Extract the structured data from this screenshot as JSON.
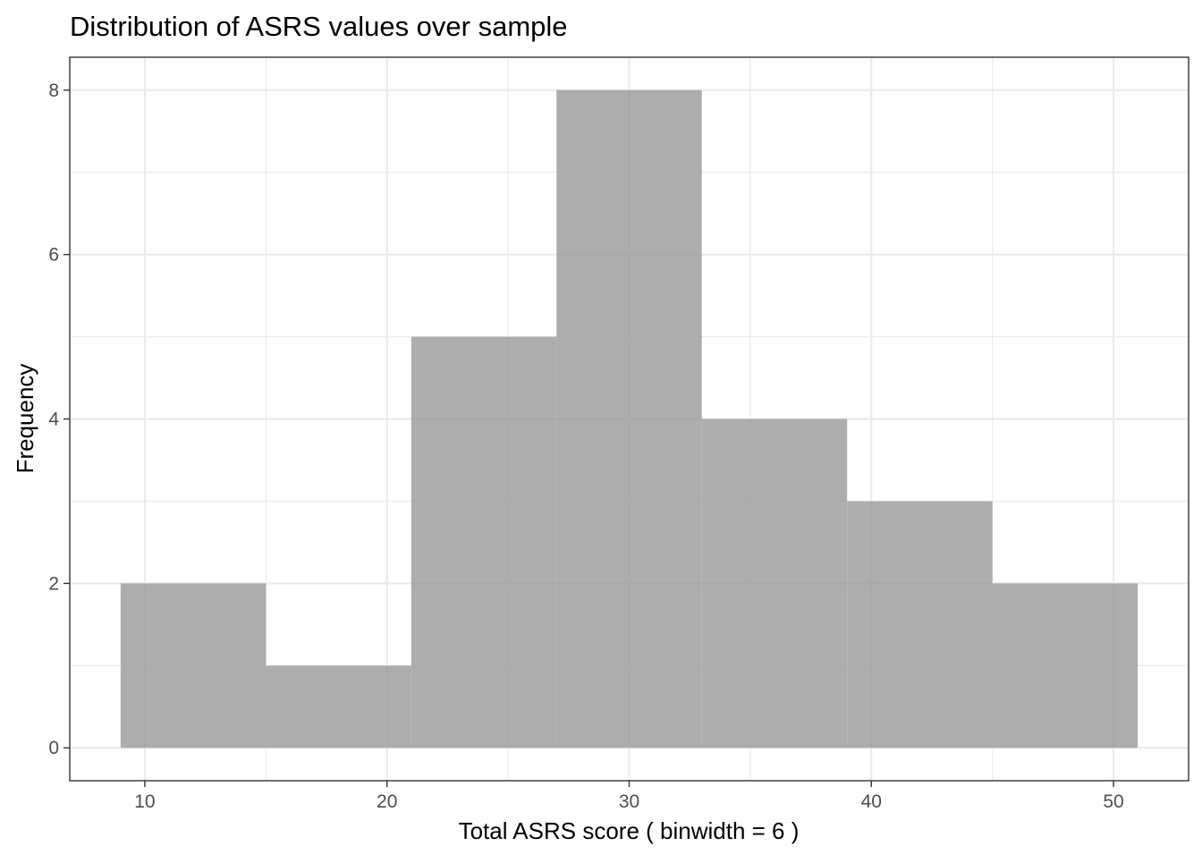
{
  "chart_data": {
    "type": "bar",
    "title": "Distribution of ASRS values over sample",
    "xlabel": "Total ASRS score ( binwidth =  6 )",
    "ylabel": "Frequency",
    "binwidth": 6,
    "bins": [
      {
        "start": 9,
        "end": 15,
        "count": 2
      },
      {
        "start": 15,
        "end": 21,
        "count": 1
      },
      {
        "start": 21,
        "end": 27,
        "count": 5
      },
      {
        "start": 27,
        "end": 33,
        "count": 8
      },
      {
        "start": 33,
        "end": 39,
        "count": 4
      },
      {
        "start": 39,
        "end": 45,
        "count": 3
      },
      {
        "start": 45,
        "end": 51,
        "count": 2
      }
    ],
    "xlim": [
      6.9,
      53.1
    ],
    "ylim": [
      -0.4,
      8.4
    ],
    "x_ticks": [
      10,
      20,
      30,
      40,
      50
    ],
    "y_ticks": [
      0,
      2,
      4,
      6,
      8
    ],
    "x_minor_ticks": [
      15,
      25,
      35,
      45
    ],
    "y_minor_ticks": [
      1,
      3,
      5,
      7
    ],
    "grid": true,
    "legend": "none",
    "bar_color": "#999999",
    "bar_opacity": 0.8
  }
}
